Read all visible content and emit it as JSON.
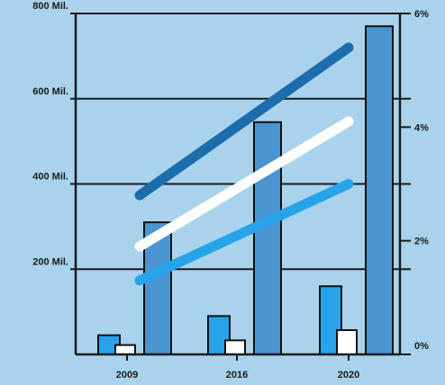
{
  "chart_data": {
    "type": "bar",
    "categories": [
      "2009",
      "2016",
      "2020"
    ],
    "ylim": [
      0,
      800
    ],
    "y_ticks": [
      {
        "value": 200,
        "label": "200 Mil."
      },
      {
        "value": 400,
        "label": "400 Mil."
      },
      {
        "value": 600,
        "label": "600 Mil."
      },
      {
        "value": 800,
        "label": "800 Mil."
      }
    ],
    "y2lim": [
      0,
      6
    ],
    "y2_ticks": [
      {
        "value": 0,
        "label": "0%"
      },
      {
        "value": 2,
        "label": "2%"
      },
      {
        "value": 4,
        "label": "4%"
      },
      {
        "value": 6,
        "label": "6%"
      }
    ],
    "grid": true,
    "bar_series": [
      {
        "color": "#27a3ea",
        "values": [
          45,
          90,
          160
        ]
      },
      {
        "color": "#ffffff",
        "values": [
          22,
          33,
          57
        ]
      },
      {
        "color": "#4a94d2",
        "values": [
          310,
          545,
          770
        ]
      }
    ],
    "line_series": [
      {
        "color": "#1d6cab",
        "start": [
          0,
          2.8
        ],
        "end": [
          2,
          5.4
        ]
      },
      {
        "color": "#ffffff",
        "start": [
          0,
          1.9
        ],
        "end": [
          2,
          4.1
        ]
      },
      {
        "color": "#27a3ea",
        "start": [
          0,
          1.3
        ],
        "end": [
          2,
          3.0
        ]
      }
    ]
  }
}
